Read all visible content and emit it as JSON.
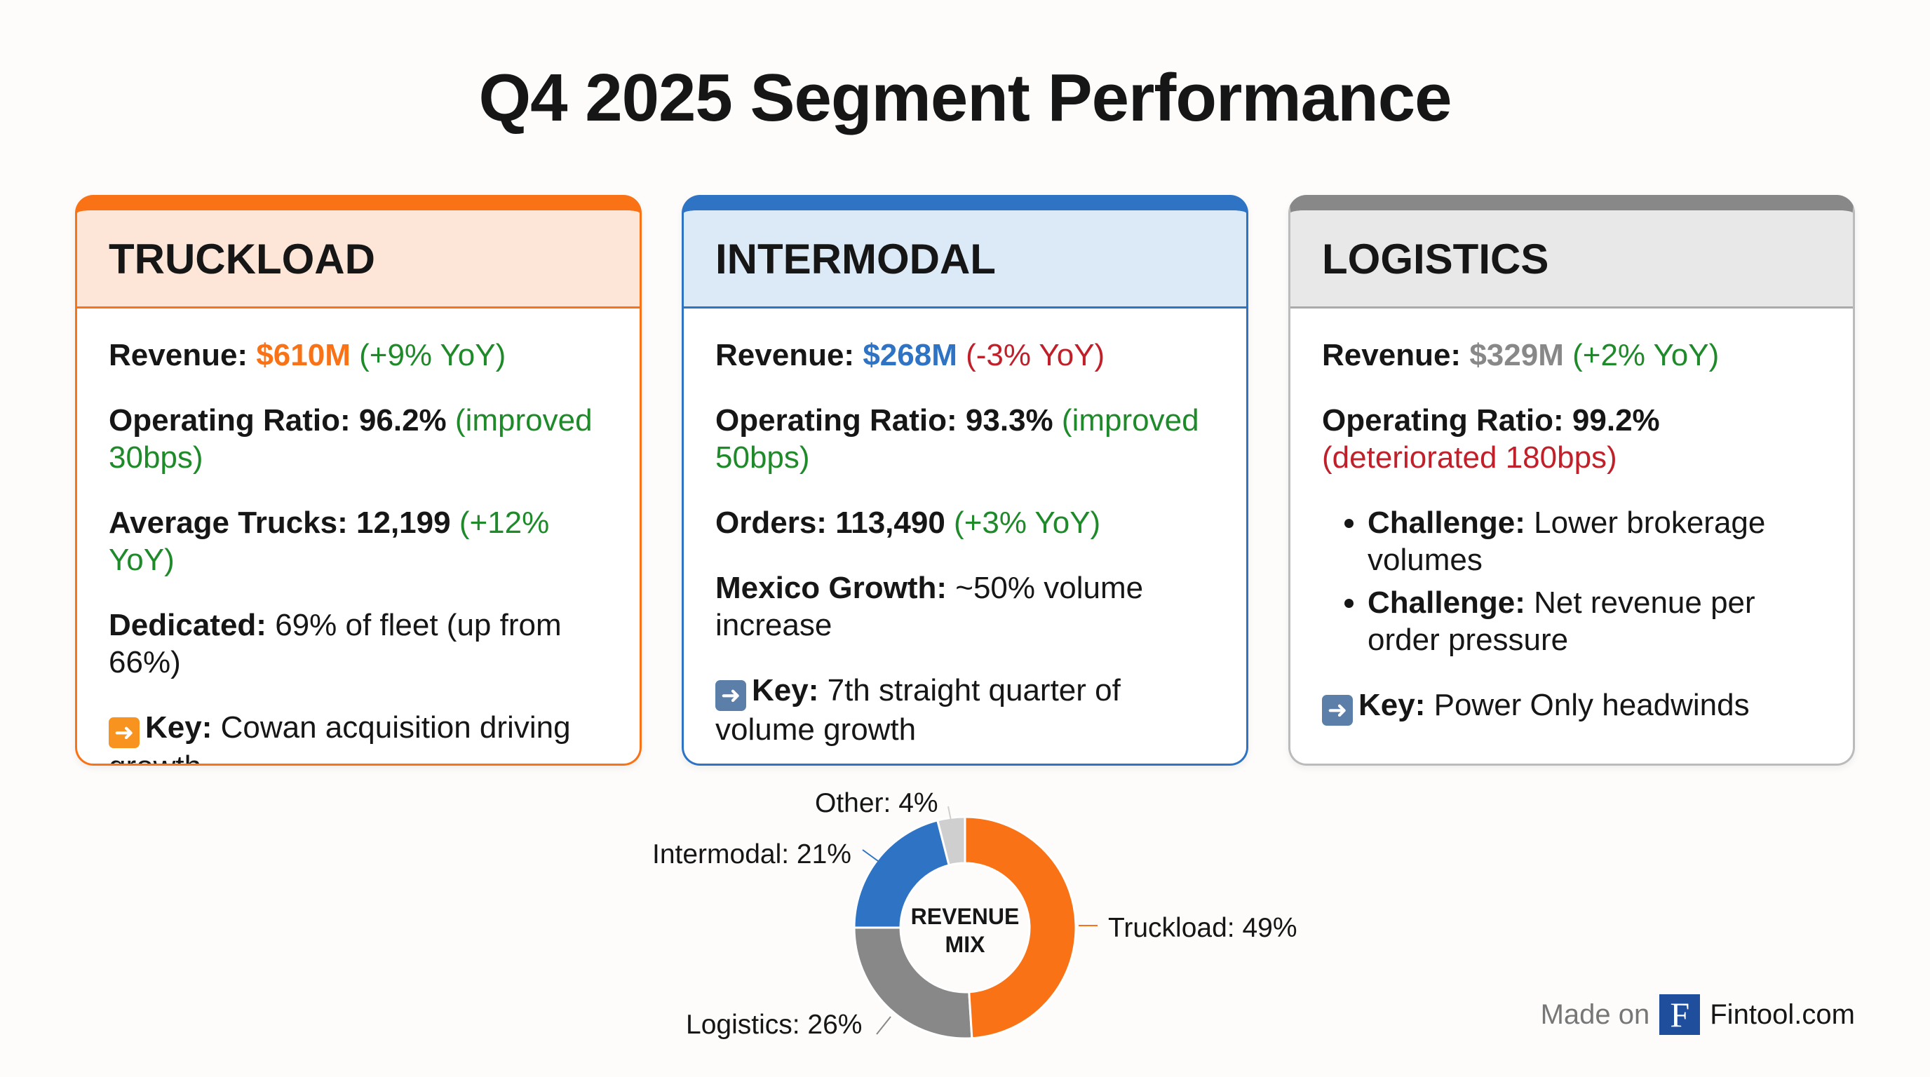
{
  "title": "Q4 2025 Segment Performance",
  "colors": {
    "truckload": "#f97316",
    "intermodal": "#2f74c4",
    "logistics": "#888888",
    "other": "#cfcfcf",
    "positive": "#1e8a2a",
    "negative": "#c0202a"
  },
  "cards": [
    {
      "name": "TRUCKLOAD",
      "revenue_label": "Revenue:",
      "revenue_value": "$610M",
      "revenue_change": "(+9% YoY)",
      "or_label": "Operating Ratio:",
      "or_value": "96.2%",
      "or_change": "(improved 30bps)",
      "metric_label": "Average Trucks:",
      "metric_value": "12,199",
      "metric_change": "(+12% YoY)",
      "extra_label": "Dedicated:",
      "extra_text": "69% of fleet (up from 66%)",
      "key_icon": "arrow-right-icon",
      "key_label": "Key:",
      "key_text": "Cowan acquisition driving growth"
    },
    {
      "name": "INTERMODAL",
      "revenue_label": "Revenue:",
      "revenue_value": "$268M",
      "revenue_change": "(-3% YoY)",
      "or_label": "Operating Ratio:",
      "or_value": "93.3%",
      "or_change": "(improved 50bps)",
      "metric_label": "Orders:",
      "metric_value": "113,490",
      "metric_change": "(+3% YoY)",
      "extra_label": "Mexico Growth:",
      "extra_text": "~50% volume increase",
      "key_icon": "arrow-right-icon",
      "key_label": "Key:",
      "key_text": "7th straight quarter of volume growth"
    },
    {
      "name": "LOGISTICS",
      "revenue_label": "Revenue:",
      "revenue_value": "$329M",
      "revenue_change": "(+2% YoY)",
      "or_label": "Operating Ratio:",
      "or_value": "99.2%",
      "or_change": "(deteriorated 180bps)",
      "bullets": [
        {
          "label": "Challenge:",
          "text": "Lower brokerage volumes"
        },
        {
          "label": "Challenge:",
          "text": "Net revenue per order pressure"
        }
      ],
      "key_icon": "arrow-right-icon",
      "key_label": "Key:",
      "key_text": "Power Only headwinds"
    }
  ],
  "chart_data": {
    "type": "pie",
    "variant": "donut",
    "center_label": "REVENUE MIX",
    "categories": [
      "Truckload",
      "Logistics",
      "Intermodal",
      "Other"
    ],
    "values": [
      49,
      26,
      21,
      4
    ],
    "labels": [
      "Truckload: 49%",
      "Logistics: 26%",
      "Intermodal: 21%",
      "Other: 4%"
    ],
    "colors": [
      "#f97316",
      "#888888",
      "#2f74c4",
      "#cfcfcf"
    ]
  },
  "footer": {
    "made_on": "Made on",
    "logo_letter": "F",
    "brand": "Fintool.com"
  }
}
